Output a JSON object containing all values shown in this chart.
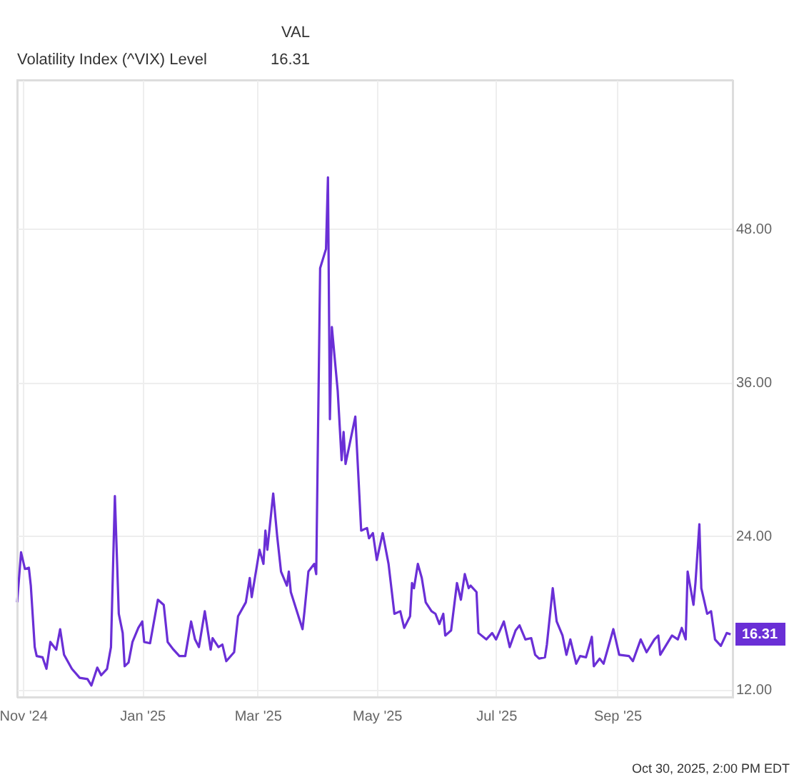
{
  "chart_data": {
    "type": "line",
    "title": "Volatility Index (^VIX) Level",
    "annotations": [
      "VAL",
      "16.31",
      {
        "text": "16.31",
        "x": "2025-10-29",
        "y": 16.31
      },
      "Oct 30, 2025, 2:00 PM EDT"
    ],
    "xlim": [
      "2024-10-29",
      "2025-10-30"
    ],
    "xticks": [
      {
        "value": "2024-11-01",
        "label": "Nov '24"
      },
      {
        "value": "2025-01-01",
        "label": "Jan '25"
      },
      {
        "value": "2025-03-01",
        "label": "Mar '25"
      },
      {
        "value": "2025-05-01",
        "label": "May '25"
      },
      {
        "value": "2025-07-01",
        "label": "Jul '25"
      },
      {
        "value": "2025-09-01",
        "label": "Sep '25"
      }
    ],
    "ylim": [
      11.4,
      59.6
    ],
    "yticks": [
      {
        "value": 12,
        "label": "12.00"
      },
      {
        "value": 24,
        "label": "24.00"
      },
      {
        "value": 36,
        "label": "36.00"
      },
      {
        "value": 48,
        "label": "48.00"
      }
    ],
    "grid": true,
    "line_style": "solid",
    "marker": "none",
    "series": [
      {
        "color": "#6a2fd6",
        "x": [
          "2024-10-29",
          "2024-10-31",
          "2024-11-02",
          "2024-11-04",
          "2024-11-05",
          "2024-11-07",
          "2024-11-08",
          "2024-11-11",
          "2024-11-13",
          "2024-11-15",
          "2024-11-18",
          "2024-11-20",
          "2024-11-22",
          "2024-11-26",
          "2024-11-30",
          "2024-12-04",
          "2024-12-06",
          "2024-12-09",
          "2024-12-11",
          "2024-12-14",
          "2024-12-16",
          "2024-12-18",
          "2024-12-20",
          "2024-12-22",
          "2024-12-23",
          "2024-12-25",
          "2024-12-27",
          "2024-12-30",
          "2025-01-01",
          "2025-01-02",
          "2025-01-05",
          "2025-01-07",
          "2025-01-09",
          "2025-01-12",
          "2025-01-14",
          "2025-01-17",
          "2025-01-20",
          "2025-01-23",
          "2025-01-26",
          "2025-01-28",
          "2025-01-30",
          "2025-02-02",
          "2025-02-05",
          "2025-02-06",
          "2025-02-09",
          "2025-02-11",
          "2025-02-13",
          "2025-02-17",
          "2025-02-19",
          "2025-02-23",
          "2025-02-25",
          "2025-02-26",
          "2025-03-02",
          "2025-03-04",
          "2025-03-05",
          "2025-03-06",
          "2025-03-09",
          "2025-03-11",
          "2025-03-13",
          "2025-03-16",
          "2025-03-17",
          "2025-03-18",
          "2025-03-24",
          "2025-03-25",
          "2025-03-27",
          "2025-03-30",
          "2025-03-31",
          "2025-04-02",
          "2025-04-05",
          "2025-04-06",
          "2025-04-07",
          "2025-04-08",
          "2025-04-11",
          "2025-04-13",
          "2025-04-14",
          "2025-04-15",
          "2025-04-20",
          "2025-04-23",
          "2025-04-26",
          "2025-04-27",
          "2025-04-29",
          "2025-05-01",
          "2025-05-04",
          "2025-05-07",
          "2025-05-10",
          "2025-05-13",
          "2025-05-15",
          "2025-05-18",
          "2025-05-19",
          "2025-05-20",
          "2025-05-22",
          "2025-05-24",
          "2025-05-26",
          "2025-05-29",
          "2025-05-31",
          "2025-06-02",
          "2025-06-04",
          "2025-06-05",
          "2025-06-08",
          "2025-06-11",
          "2025-06-13",
          "2025-06-15",
          "2025-06-17",
          "2025-06-18",
          "2025-06-21",
          "2025-06-22",
          "2025-06-26",
          "2025-06-29",
          "2025-07-01",
          "2025-07-05",
          "2025-07-08",
          "2025-07-11",
          "2025-07-13",
          "2025-07-16",
          "2025-07-19",
          "2025-07-21",
          "2025-07-23",
          "2025-07-26",
          "2025-07-27",
          "2025-07-30",
          "2025-08-01",
          "2025-08-04",
          "2025-08-06",
          "2025-08-08",
          "2025-08-11",
          "2025-08-13",
          "2025-08-16",
          "2025-08-19",
          "2025-08-20",
          "2025-08-23",
          "2025-08-25",
          "2025-08-30",
          "2025-09-02",
          "2025-09-07",
          "2025-09-09",
          "2025-09-13",
          "2025-09-16",
          "2025-09-20",
          "2025-09-22",
          "2025-09-23",
          "2025-09-29",
          "2025-10-02",
          "2025-10-04",
          "2025-10-06",
          "2025-10-07",
          "2025-10-10",
          "2025-10-11",
          "2025-10-13",
          "2025-10-14",
          "2025-10-17",
          "2025-10-19",
          "2025-10-21",
          "2025-10-24",
          "2025-10-27",
          "2025-10-29"
        ],
        "values": [
          18.8,
          22.7,
          21.4,
          21.5,
          20.1,
          15.3,
          14.6,
          14.5,
          13.6,
          15.7,
          15.1,
          16.7,
          14.7,
          13.6,
          12.9,
          12.8,
          12.3,
          13.7,
          13.1,
          13.6,
          15.3,
          27.1,
          17.9,
          16.4,
          13.8,
          14.1,
          15.7,
          16.8,
          17.3,
          15.7,
          15.6,
          17.3,
          19.0,
          18.6,
          15.7,
          15.1,
          14.6,
          14.6,
          17.3,
          15.9,
          15.3,
          18.1,
          15.1,
          16.0,
          15.3,
          15.5,
          14.2,
          14.9,
          17.7,
          18.8,
          20.7,
          19.2,
          22.9,
          21.8,
          24.4,
          22.9,
          27.3,
          24.0,
          21.2,
          20.1,
          21.2,
          19.6,
          16.7,
          18.1,
          21.2,
          21.8,
          21.0,
          44.9,
          46.4,
          52.0,
          33.1,
          40.3,
          35.3,
          29.9,
          32.1,
          29.6,
          33.3,
          24.4,
          24.6,
          23.8,
          24.2,
          22.1,
          24.2,
          21.8,
          17.9,
          18.1,
          16.8,
          17.7,
          20.3,
          19.9,
          21.8,
          20.7,
          18.8,
          18.1,
          17.9,
          17.1,
          17.9,
          16.2,
          16.6,
          20.3,
          19.0,
          21.0,
          19.9,
          20.1,
          19.6,
          16.4,
          15.9,
          16.4,
          15.9,
          17.3,
          15.3,
          16.6,
          17.0,
          15.9,
          16.0,
          14.7,
          14.4,
          14.5,
          15.5,
          19.9,
          17.3,
          16.2,
          14.7,
          15.9,
          14.0,
          14.6,
          14.5,
          16.1,
          13.8,
          14.4,
          14.0,
          16.7,
          14.7,
          14.6,
          14.2,
          15.9,
          14.9,
          15.9,
          16.2,
          14.7,
          16.2,
          15.9,
          16.8,
          15.9,
          21.2,
          18.6,
          20.3,
          24.9,
          19.9,
          17.9,
          18.1,
          15.9,
          15.4,
          16.4,
          16.3
        ]
      }
    ]
  }
}
